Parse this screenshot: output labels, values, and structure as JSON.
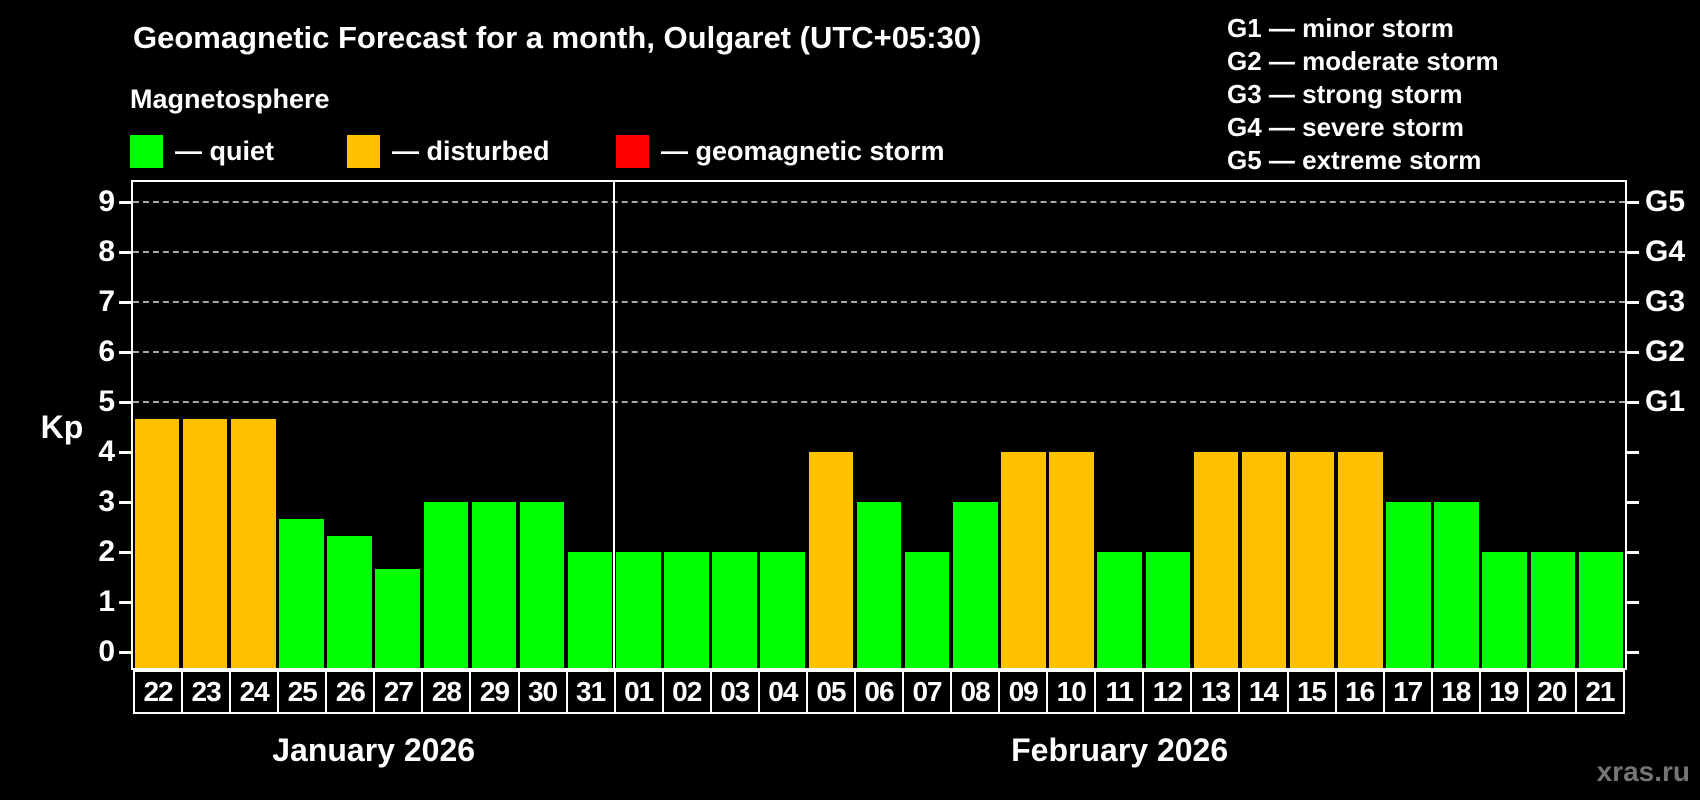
{
  "title": "Geomagnetic Forecast for a month, Oulgaret (UTC+05:30)",
  "subtitle": "Magnetosphere",
  "storm_scale": [
    "G1 — minor storm",
    "G2 — moderate storm",
    "G3 — strong storm",
    "G4 — severe storm",
    "G5 — extreme storm"
  ],
  "legend": {
    "items": [
      {
        "key": "quiet",
        "label": "— quiet"
      },
      {
        "key": "disturbed",
        "label": "— disturbed"
      },
      {
        "key": "storm",
        "label": "— geomagnetic storm"
      }
    ]
  },
  "watermark": "xras.ru",
  "chart_data": {
    "type": "bar",
    "title": "Geomagnetic Forecast for a month, Oulgaret (UTC+05:30)",
    "ylabel": "Kp",
    "xlabel": "",
    "ylim": [
      0,
      9.4
    ],
    "yticks": [
      0,
      1,
      2,
      3,
      4,
      5,
      6,
      7,
      8,
      9
    ],
    "grid": "dashed horizontal lines at Kp 5-9 only",
    "g_levels": [
      {
        "kp": 5,
        "label": "G1"
      },
      {
        "kp": 6,
        "label": "G2"
      },
      {
        "kp": 7,
        "label": "G3"
      },
      {
        "kp": 8,
        "label": "G4"
      },
      {
        "kp": 9,
        "label": "G5"
      }
    ],
    "months": [
      {
        "label": "January 2026",
        "days": 10
      },
      {
        "label": "February 2026",
        "days": 21
      }
    ],
    "categories": [
      "22",
      "23",
      "24",
      "25",
      "26",
      "27",
      "28",
      "29",
      "30",
      "31",
      "01",
      "02",
      "03",
      "04",
      "05",
      "06",
      "07",
      "08",
      "09",
      "10",
      "11",
      "12",
      "13",
      "14",
      "15",
      "16",
      "17",
      "18",
      "19",
      "20",
      "21"
    ],
    "values": [
      4.67,
      4.67,
      4.67,
      2.67,
      2.33,
      1.67,
      3,
      3,
      3,
      2,
      2,
      2,
      2,
      2,
      4,
      3,
      2,
      3,
      4,
      4,
      2,
      2,
      4,
      4,
      4,
      4,
      3,
      3,
      2,
      2,
      2
    ],
    "states": [
      "disturbed",
      "disturbed",
      "disturbed",
      "quiet",
      "quiet",
      "quiet",
      "quiet",
      "quiet",
      "quiet",
      "quiet",
      "quiet",
      "quiet",
      "quiet",
      "quiet",
      "disturbed",
      "quiet",
      "quiet",
      "quiet",
      "disturbed",
      "disturbed",
      "quiet",
      "quiet",
      "disturbed",
      "disturbed",
      "disturbed",
      "disturbed",
      "quiet",
      "quiet",
      "quiet",
      "quiet",
      "quiet"
    ],
    "colors": {
      "quiet": "#00ff00",
      "disturbed": "#ffc000",
      "storm": "#ff0000"
    },
    "axis_color": "#ffffff",
    "gridline_color": "#a8a8a8",
    "background": "#000000"
  }
}
